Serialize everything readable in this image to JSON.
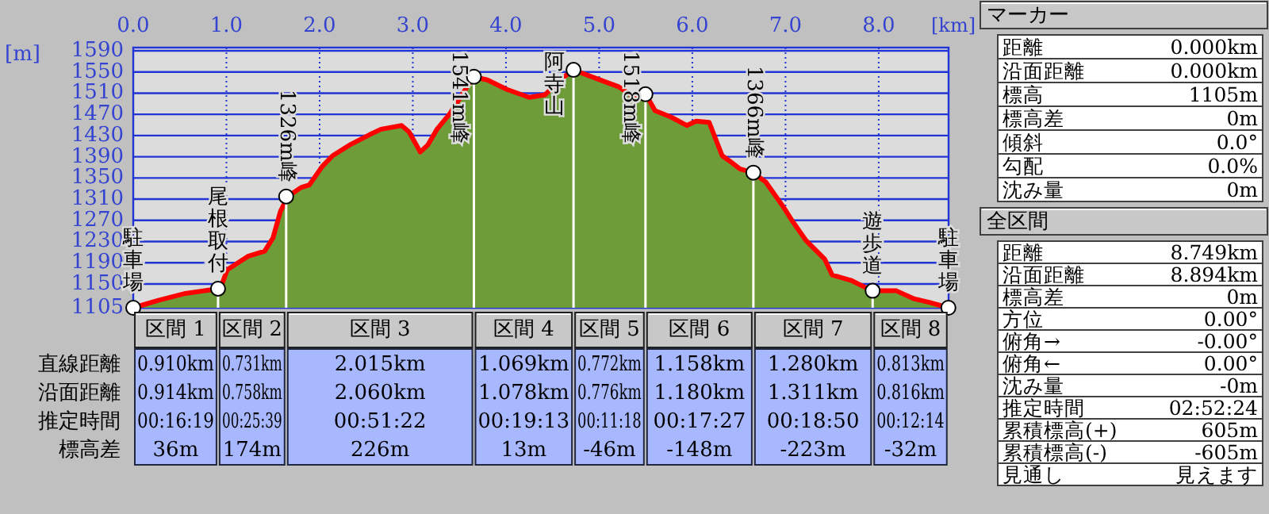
{
  "chart_data": [
    {
      "type": "area",
      "xlabel": "[km]",
      "ylabel": "[m]",
      "xlim": [
        0,
        8.75
      ],
      "ylim": [
        1105,
        1596
      ],
      "grid": true,
      "xticks": [
        {
          "value": 0,
          "label": "0.0"
        },
        {
          "value": 1,
          "label": "1.0"
        },
        {
          "value": 2,
          "label": "2.0"
        },
        {
          "value": 3,
          "label": "3.0"
        },
        {
          "value": 4,
          "label": "4.0"
        },
        {
          "value": 5,
          "label": "5.0"
        },
        {
          "value": 6,
          "label": "6.0"
        },
        {
          "value": 7,
          "label": "7.0"
        },
        {
          "value": 8,
          "label": "8.0"
        }
      ],
      "yticks": [
        1105,
        1150,
        1190,
        1230,
        1270,
        1310,
        1350,
        1390,
        1430,
        1470,
        1510,
        1550,
        1590
      ],
      "series": [
        {
          "type": "area",
          "color": "#6e9c38",
          "x": [
            0,
            0.27,
            0.56,
            0.84,
            0.94,
            1.01,
            1.23,
            1.41,
            1.5,
            1.58,
            1.66,
            1.8,
            1.89,
            2.03,
            2.14,
            2.32,
            2.54,
            2.66,
            2.88,
            2.96,
            3.08,
            3.16,
            3.26,
            3.4,
            3.51,
            3.65,
            3.8,
            4.01,
            4.25,
            4.42,
            4.61,
            4.72,
            4.98,
            5.21,
            5.38,
            5.5,
            5.6,
            5.77,
            5.94,
            6.04,
            6.18,
            6.32,
            6.4,
            6.51,
            6.65,
            6.79,
            6.97,
            7.08,
            7.22,
            7.42,
            7.5,
            7.7,
            7.93,
            8.19,
            8.38,
            8.55,
            8.75
          ],
          "values": [
            1105,
            1119,
            1132,
            1139,
            1144,
            1177,
            1202,
            1212,
            1237,
            1287,
            1315,
            1332,
            1337,
            1372,
            1392,
            1412,
            1432,
            1442,
            1449,
            1437,
            1399,
            1412,
            1442,
            1472,
            1502,
            1541,
            1535,
            1517,
            1502,
            1507,
            1539,
            1554,
            1537,
            1522,
            1502,
            1508,
            1477,
            1465,
            1449,
            1457,
            1455,
            1392,
            1382,
            1367,
            1360,
            1342,
            1297,
            1267,
            1232,
            1197,
            1167,
            1157,
            1137,
            1137,
            1122,
            1115,
            1105
          ]
        },
        {
          "type": "lollipop",
          "color": "#ffffff",
          "x": [
            0,
            0.91,
            1.641,
            3.656,
            4.725,
            5.497,
            6.655,
            7.935,
            8.748
          ],
          "values": [
            1105,
            1141,
            1315,
            1541,
            1554,
            1508,
            1360,
            1137,
            1105
          ]
        }
      ],
      "annotations": [
        {
          "text": "駐車場",
          "x": 0,
          "y": 1105
        },
        {
          "text": "尾根取付",
          "x": 0.91,
          "y": 1141
        },
        {
          "text": "1326m峰",
          "x": 1.641,
          "y": 1315
        },
        {
          "text": "1541m峰",
          "x": 3.656,
          "y": 1541
        },
        {
          "text": "阿寺山",
          "x": 4.725,
          "y": 1554
        },
        {
          "text": "1518m峰",
          "x": 5.497,
          "y": 1508
        },
        {
          "text": "1366m峰",
          "x": 6.655,
          "y": 1360
        },
        {
          "text": "遊歩道",
          "x": 7.935,
          "y": 1137
        },
        {
          "text": "駐車場",
          "x": 8.748,
          "y": 1105
        }
      ]
    },
    {
      "type": "other",
      "annotations": [
        "直線距離",
        "沿面距離",
        "推定時間",
        "標高差",
        "区間 1",
        "0.910km",
        "0.914km",
        "00:16:19",
        "36m",
        "区間 2",
        "0.731km",
        "0.758km",
        "00:25:39",
        "174m",
        "区間 3",
        "2.015km",
        "2.060km",
        "00:51:22",
        "226m",
        "区間 4",
        "1.069km",
        "1.078km",
        "00:19:13",
        "13m",
        "区間 5",
        "0.772km",
        "0.776km",
        "00:11:18",
        "-46m",
        "区間 6",
        "1.158km",
        "1.180km",
        "00:17:27",
        "-148m",
        "区間 7",
        "1.280km",
        "1.311km",
        "00:18:50",
        "-223m",
        "区間 8",
        "0.813km",
        "0.816km",
        "00:12:14",
        "-32m"
      ]
    },
    {
      "type": "other",
      "annotations": [
        "マーカー",
        "距離",
        "0.000km",
        "沿面距離",
        "0.000km",
        "標高",
        "1105m",
        "標高差",
        "0m",
        "傾斜",
        "0.0°",
        "勾配",
        "0.0%",
        "沈み量",
        "0m",
        "全区間",
        "距離",
        "8.749km",
        "沿面距離",
        "8.894km",
        "標高差",
        "0m",
        "方位",
        "0.00°",
        "俯角→",
        "-0.00°",
        "俯角←",
        "0.00°",
        "沈み量",
        "-0m",
        "推定時間",
        "02:52:24",
        "累積標高(+)",
        "605m",
        "累積標高(-)",
        "-605m",
        "見通し",
        "見えます"
      ]
    }
  ]
}
